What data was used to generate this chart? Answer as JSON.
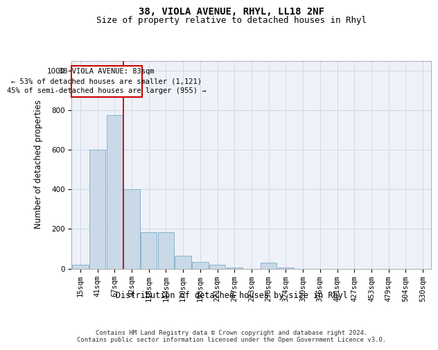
{
  "title": "38, VIOLA AVENUE, RHYL, LL18 2NF",
  "subtitle": "Size of property relative to detached houses in Rhyl",
  "xlabel": "Distribution of detached houses by size in Rhyl",
  "ylabel": "Number of detached properties",
  "categories": [
    "15sqm",
    "41sqm",
    "67sqm",
    "92sqm",
    "118sqm",
    "144sqm",
    "170sqm",
    "195sqm",
    "221sqm",
    "247sqm",
    "273sqm",
    "298sqm",
    "324sqm",
    "350sqm",
    "376sqm",
    "401sqm",
    "427sqm",
    "453sqm",
    "479sqm",
    "504sqm",
    "530sqm"
  ],
  "values": [
    20,
    600,
    775,
    400,
    185,
    185,
    65,
    35,
    20,
    5,
    0,
    30,
    5,
    0,
    0,
    0,
    0,
    0,
    0,
    0,
    0
  ],
  "bar_color": "#c9d9e8",
  "bar_edge_color": "#7aaac8",
  "grid_color": "#d0d8e8",
  "background_color": "#eef2f8",
  "vline_x": 2.52,
  "vline_color": "#cc0000",
  "annotation_text_line1": "38 VIOLA AVENUE: 83sqm",
  "annotation_text_line2": "← 53% of detached houses are smaller (1,121)",
  "annotation_text_line3": "45% of semi-detached houses are larger (955) →",
  "annotation_box_color": "#cc0000",
  "annotation_box_fill": "#ffffff",
  "ylim": [
    0,
    1050
  ],
  "yticks": [
    0,
    200,
    400,
    600,
    800,
    1000
  ],
  "footer": "Contains HM Land Registry data © Crown copyright and database right 2024.\nContains public sector information licensed under the Open Government Licence v3.0.",
  "title_fontsize": 10,
  "subtitle_fontsize": 9,
  "axis_label_fontsize": 8.5,
  "tick_fontsize": 7.5,
  "footer_fontsize": 6.5,
  "annotation_fontsize": 7.5
}
